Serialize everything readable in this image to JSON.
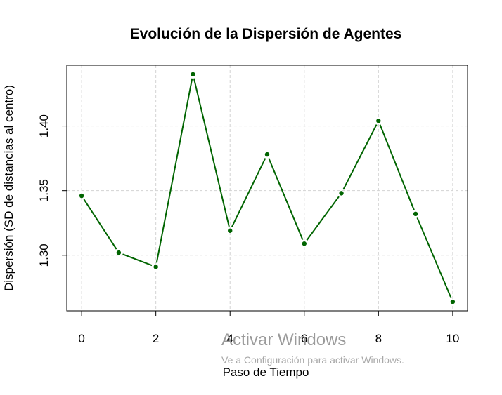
{
  "chart_data": {
    "type": "line",
    "title": "Evolución de la Dispersión de Agentes",
    "xlabel": "Paso de Tiempo",
    "ylabel": "Dispersión (SD de distancias al centro)",
    "x": [
      0,
      1,
      2,
      3,
      4,
      5,
      6,
      7,
      8,
      9,
      10
    ],
    "series": [
      {
        "values": [
          1.346,
          1.302,
          1.291,
          1.44,
          1.319,
          1.378,
          1.309,
          1.348,
          1.404,
          1.332,
          1.264
        ]
      }
    ],
    "xticks": [
      0,
      2,
      4,
      6,
      8,
      10
    ],
    "xtick_labels": [
      "0",
      "2",
      "4",
      "6",
      "8",
      "10"
    ],
    "yticks": [
      1.3,
      1.35,
      1.4
    ],
    "ytick_labels": [
      "1.30",
      "1.35",
      "1.40"
    ],
    "xlim": [
      -0.4,
      10.4
    ],
    "ylim": [
      1.257,
      1.447
    ],
    "grid": true,
    "line_color": "#006400",
    "grid_color": "#d3d3d3"
  },
  "watermark": {
    "line1": "Activar Windows",
    "line2": "Ve a Configuración para activar Windows."
  }
}
